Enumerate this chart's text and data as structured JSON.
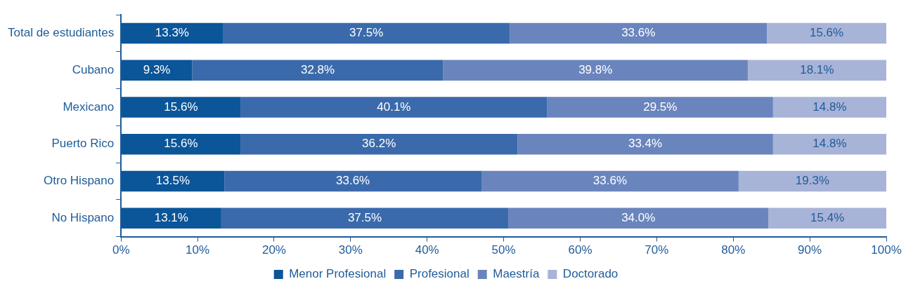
{
  "chart_data": {
    "type": "bar",
    "orientation": "horizontal",
    "stacked": true,
    "categories": [
      "Total de estudiantes",
      "Cubano",
      "Mexicano",
      "Puerto Rico",
      "Otro Hispano",
      "No Hispano"
    ],
    "series": [
      {
        "name": "Menor Profesional",
        "color": "#0b5599",
        "values": [
          13.3,
          9.3,
          15.6,
          15.6,
          13.5,
          13.1
        ],
        "value_labels": [
          "13.3%",
          "9.3%",
          "15.6%",
          "15.6%",
          "13.5%",
          "13.1%"
        ]
      },
      {
        "name": "Profesional",
        "color": "#3a6aab",
        "values": [
          37.5,
          32.8,
          40.1,
          36.2,
          33.6,
          37.5
        ],
        "value_labels": [
          "37.5%",
          "32.8%",
          "40.1%",
          "36.2%",
          "33.6%",
          "37.5%"
        ]
      },
      {
        "name": "Maestría",
        "color": "#6a85bd",
        "values": [
          33.6,
          39.8,
          29.5,
          33.4,
          33.6,
          34.0
        ],
        "value_labels": [
          "33.6%",
          "39.8%",
          "29.5%",
          "33.4%",
          "33.6%",
          "34.0%"
        ]
      },
      {
        "name": "Doctorado",
        "color": "#a8b3d8",
        "values": [
          15.6,
          18.1,
          14.8,
          14.8,
          19.3,
          15.4
        ],
        "value_labels": [
          "15.6%",
          "18.1%",
          "14.8%",
          "14.8%",
          "19.3%",
          "15.4%"
        ]
      }
    ],
    "xlim": [
      0,
      100
    ],
    "xticks": [
      {
        "value": 0,
        "label": "0%"
      },
      {
        "value": 10,
        "label": "10%"
      },
      {
        "value": 20,
        "label": "20%"
      },
      {
        "value": 30,
        "label": "30%"
      },
      {
        "value": 40,
        "label": "40%"
      },
      {
        "value": 50,
        "label": "50%"
      },
      {
        "value": 60,
        "label": "60%"
      },
      {
        "value": 70,
        "label": "70%"
      },
      {
        "value": 80,
        "label": "80%"
      },
      {
        "value": 90,
        "label": "90%"
      },
      {
        "value": 100,
        "label": "100%"
      }
    ],
    "grid": false,
    "legend": "bottom"
  }
}
